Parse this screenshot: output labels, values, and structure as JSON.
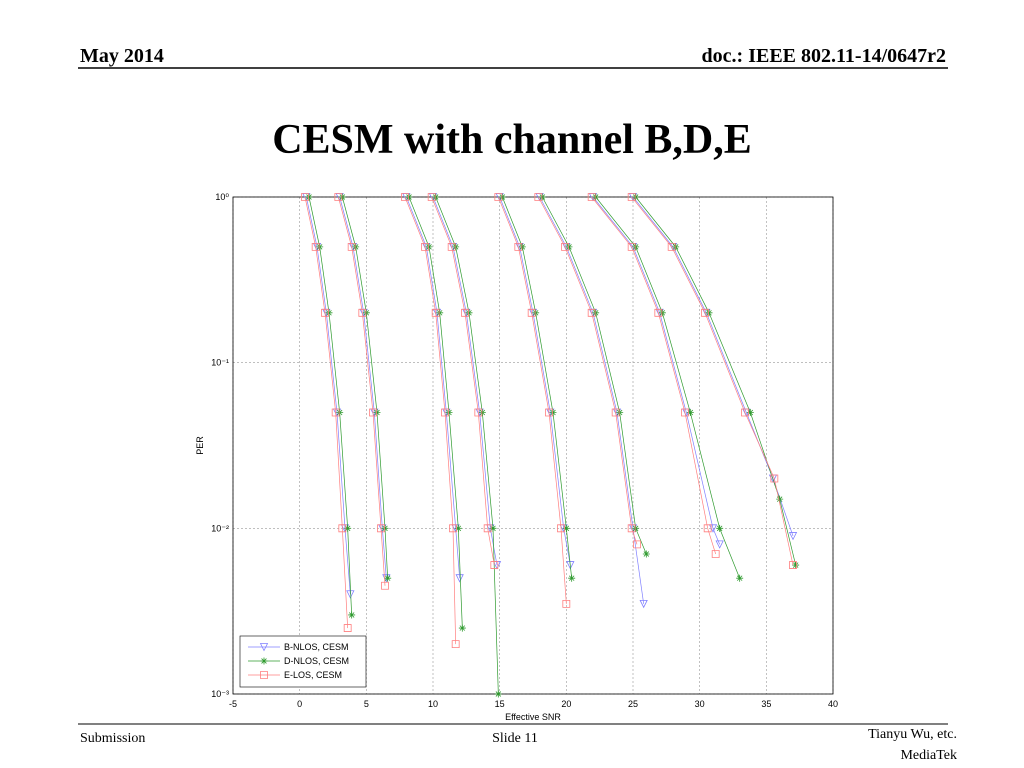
{
  "header": {
    "date": "May 2014",
    "doc": "doc.: IEEE 802.11-14/0647r2"
  },
  "title": "CESM with channel B,D,E",
  "footer": {
    "left": "Submission",
    "center": "Slide 11",
    "right": [
      "Tianyu Wu, etc.",
      "MediaTek"
    ]
  },
  "chart_data": {
    "type": "line",
    "xlabel": "Effective SNR",
    "ylabel": "PER",
    "xlim": [
      -5,
      40
    ],
    "ylim": [
      0.001,
      1
    ],
    "log_y": true,
    "grid": true,
    "legend": "lower left",
    "xticks": [
      -5,
      0,
      5,
      10,
      15,
      20,
      25,
      30,
      35,
      40
    ],
    "yticks": [
      {
        "value": 0.001,
        "label": "10⁻³"
      },
      {
        "value": 0.01,
        "label": "10⁻²"
      },
      {
        "value": 0.1,
        "label": "10⁻¹"
      },
      {
        "value": 1,
        "label": "10⁰"
      }
    ],
    "series": [
      {
        "name": "B-NLOS, CESM",
        "color": "#7f7fff",
        "marker": "triangle-down",
        "x": [
          0.5,
          1.3,
          2,
          2.8,
          3.4,
          3.8,
          null,
          3,
          4,
          4.8,
          5.6,
          6.2,
          6.5,
          null,
          8,
          9.5,
          10.3,
          11,
          11.7,
          12,
          null,
          10,
          11.5,
          12.5,
          13.5,
          14.3,
          14.8,
          null,
          15,
          16.5,
          17.5,
          18.8,
          19.8,
          20.3,
          null,
          18,
          20,
          22,
          23.8,
          25,
          25.8,
          null,
          22,
          25,
          27,
          29,
          31,
          31.5,
          null,
          25,
          28,
          30.5,
          33.5,
          35.5,
          37
        ],
        "values": [
          1,
          0.5,
          0.2,
          0.05,
          0.01,
          0.004,
          null,
          1,
          0.5,
          0.2,
          0.05,
          0.01,
          0.005,
          null,
          1,
          0.5,
          0.2,
          0.05,
          0.01,
          0.005,
          null,
          1,
          0.5,
          0.2,
          0.05,
          0.01,
          0.006,
          null,
          1,
          0.5,
          0.2,
          0.05,
          0.01,
          0.006,
          null,
          1,
          0.5,
          0.2,
          0.05,
          0.01,
          0.0035,
          null,
          1,
          0.5,
          0.2,
          0.05,
          0.01,
          0.008,
          null,
          1,
          0.5,
          0.2,
          0.05,
          0.02,
          0.009
        ]
      },
      {
        "name": "D-NLOS, CESM",
        "color": "#2e9a2e",
        "marker": "star",
        "x": [
          0.7,
          1.5,
          2.2,
          3,
          3.6,
          3.9,
          null,
          3.2,
          4.2,
          5,
          5.8,
          6.4,
          6.6,
          null,
          8.2,
          9.7,
          10.5,
          11.2,
          11.9,
          12.2,
          null,
          10.2,
          11.7,
          12.7,
          13.7,
          14.5,
          14.9,
          null,
          15.2,
          16.7,
          17.7,
          19,
          20,
          20.4,
          null,
          18.2,
          20.2,
          22.2,
          24,
          25.2,
          26,
          null,
          22.2,
          25.2,
          27.2,
          29.3,
          31.5,
          33,
          null,
          25.2,
          28.2,
          30.7,
          33.8,
          36,
          37.2
        ],
        "values": [
          1,
          0.5,
          0.2,
          0.05,
          0.01,
          0.003,
          null,
          1,
          0.5,
          0.2,
          0.05,
          0.01,
          0.005,
          null,
          1,
          0.5,
          0.2,
          0.05,
          0.01,
          0.0025,
          null,
          1,
          0.5,
          0.2,
          0.05,
          0.01,
          0.001,
          null,
          1,
          0.5,
          0.2,
          0.05,
          0.01,
          0.005,
          null,
          1,
          0.5,
          0.2,
          0.05,
          0.01,
          0.007,
          null,
          1,
          0.5,
          0.2,
          0.05,
          0.01,
          0.005,
          null,
          1,
          0.5,
          0.2,
          0.05,
          0.015,
          0.006
        ]
      },
      {
        "name": "E-LOS, CESM",
        "color": "#ff7f7f",
        "marker": "square",
        "x": [
          0.4,
          1.2,
          1.9,
          2.7,
          3.2,
          3.6,
          null,
          2.9,
          3.9,
          4.7,
          5.5,
          6.1,
          6.4,
          null,
          7.9,
          9.4,
          10.2,
          10.9,
          11.5,
          11.7,
          null,
          9.9,
          11.4,
          12.4,
          13.4,
          14.1,
          14.6,
          null,
          14.9,
          16.4,
          17.4,
          18.7,
          19.6,
          20,
          null,
          17.9,
          19.9,
          21.9,
          23.7,
          24.9,
          25.3,
          null,
          21.9,
          24.9,
          26.9,
          28.9,
          30.6,
          31.2,
          null,
          24.9,
          27.9,
          30.4,
          33.4,
          35.6,
          37
        ],
        "values": [
          1,
          0.5,
          0.2,
          0.05,
          0.01,
          0.0025,
          null,
          1,
          0.5,
          0.2,
          0.05,
          0.01,
          0.0045,
          null,
          1,
          0.5,
          0.2,
          0.05,
          0.01,
          0.002,
          null,
          1,
          0.5,
          0.2,
          0.05,
          0.01,
          0.006,
          null,
          1,
          0.5,
          0.2,
          0.05,
          0.01,
          0.0035,
          null,
          1,
          0.5,
          0.2,
          0.05,
          0.01,
          0.008,
          null,
          1,
          0.5,
          0.2,
          0.05,
          0.01,
          0.007,
          null,
          1,
          0.5,
          0.2,
          0.05,
          0.02,
          0.006
        ]
      }
    ]
  }
}
